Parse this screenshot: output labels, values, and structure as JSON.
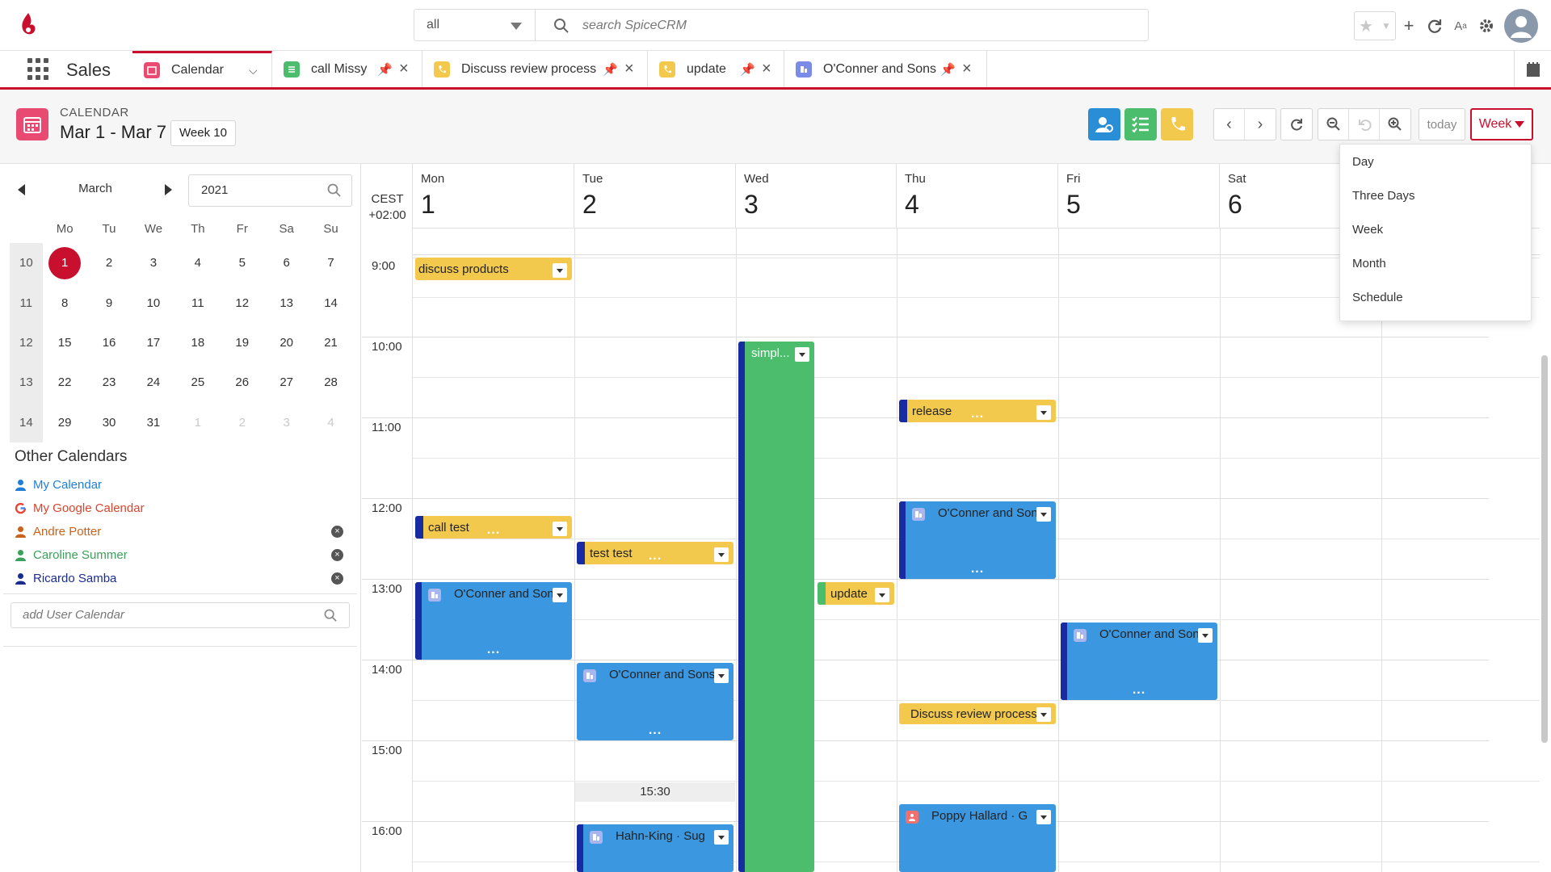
{
  "app": {
    "name": "Sales"
  },
  "search": {
    "scope": "all",
    "placeholder": "search SpiceCRM"
  },
  "tabs": [
    {
      "label": "Calendar",
      "color": "#e84a71"
    },
    {
      "label": "call Missy",
      "color": "#4cbd6d"
    },
    {
      "label": "Discuss review process",
      "color": "#f2c94c"
    },
    {
      "label": "update",
      "color": "#f2c94c"
    },
    {
      "label": "O'Conner and Sons",
      "color": "#7b8be8"
    }
  ],
  "header": {
    "type": "CALENDAR",
    "title": "Mar 1 - Mar 7",
    "week_badge": "Week 10",
    "today_label": "today",
    "view_label": "Week"
  },
  "view_menu": [
    "Day",
    "Three Days",
    "Week",
    "Month",
    "Schedule"
  ],
  "mini_calendar": {
    "month": "March",
    "year": "2021",
    "weekdays": [
      "Mo",
      "Tu",
      "We",
      "Th",
      "Fr",
      "Sa",
      "Su"
    ],
    "weeks": [
      {
        "wk": "10",
        "days": [
          "1",
          "2",
          "3",
          "4",
          "5",
          "6",
          "7"
        ]
      },
      {
        "wk": "11",
        "days": [
          "8",
          "9",
          "10",
          "11",
          "12",
          "13",
          "14"
        ]
      },
      {
        "wk": "12",
        "days": [
          "15",
          "16",
          "17",
          "18",
          "19",
          "20",
          "21"
        ]
      },
      {
        "wk": "13",
        "days": [
          "22",
          "23",
          "24",
          "25",
          "26",
          "27",
          "28"
        ]
      },
      {
        "wk": "14",
        "days": [
          "29",
          "30",
          "31",
          "1",
          "2",
          "3",
          "4"
        ]
      }
    ],
    "selected": "1"
  },
  "other_calendars": {
    "title": "Other Calendars",
    "items": [
      {
        "label": "My Calendar",
        "color": "#1f7fd6"
      },
      {
        "label": "My Google Calendar",
        "color": "#d6452f"
      },
      {
        "label": "Andre Potter",
        "color": "#c9621d"
      },
      {
        "label": "Caroline Summer",
        "color": "#3aa15a"
      },
      {
        "label": "Ricardo Samba",
        "color": "#1b2c8f"
      }
    ],
    "add_placeholder": "add User Calendar"
  },
  "grid": {
    "timezone": "CEST",
    "offset": "+02:00",
    "days": [
      {
        "name": "Mon",
        "date": "1"
      },
      {
        "name": "Tue",
        "date": "2"
      },
      {
        "name": "Wed",
        "date": "3"
      },
      {
        "name": "Thu",
        "date": "4"
      },
      {
        "name": "Fri",
        "date": "5"
      },
      {
        "name": "Sat",
        "date": "6"
      }
    ],
    "hours": [
      "9:00",
      "10:00",
      "11:00",
      "12:00",
      "13:00",
      "14:00",
      "15:00",
      "16:00"
    ],
    "current_time_marker": "15:30"
  },
  "events": {
    "discuss_products": "discuss products",
    "simpl": "simpl...",
    "release": "release",
    "call_test": "call test",
    "test_test": "test test",
    "oconner_thu": "O'Conner and Sons",
    "oconner_mon": "O'Conner and Sons",
    "update": "update",
    "oconner_fri": "O'Conner and Sons",
    "oconner_tue": "O'Conner and Sons",
    "discuss_review": "Discuss review process",
    "poppy": "Poppy Hallard  ·  G",
    "hahn": "Hahn-King  ·  Sug"
  }
}
